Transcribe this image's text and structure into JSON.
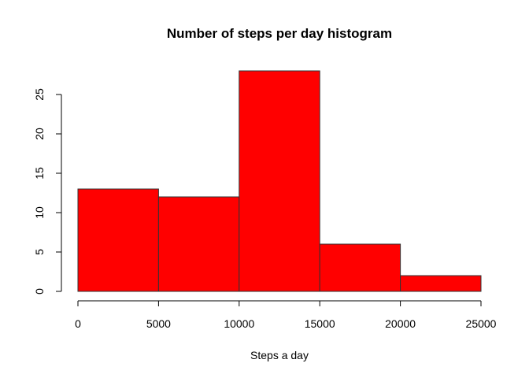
{
  "chart_data": {
    "type": "bar",
    "title": "Number of steps per day histogram",
    "xlabel": "Steps a day",
    "ylabel": "",
    "bins": [
      {
        "start": 0,
        "end": 5000,
        "count": 13
      },
      {
        "start": 5000,
        "end": 10000,
        "count": 12
      },
      {
        "start": 10000,
        "end": 15000,
        "count": 28
      },
      {
        "start": 15000,
        "end": 20000,
        "count": 6
      },
      {
        "start": 20000,
        "end": 25000,
        "count": 2
      }
    ],
    "x_ticks": [
      0,
      5000,
      10000,
      15000,
      20000,
      25000
    ],
    "y_ticks": [
      0,
      5,
      10,
      15,
      20,
      25
    ],
    "xlim": [
      0,
      25000
    ],
    "ylim": [
      0,
      28
    ],
    "grid": false,
    "legend": "none",
    "colors": {
      "bar_fill": "#ff0000",
      "bar_stroke": "#333333",
      "axis": "#000000"
    }
  }
}
